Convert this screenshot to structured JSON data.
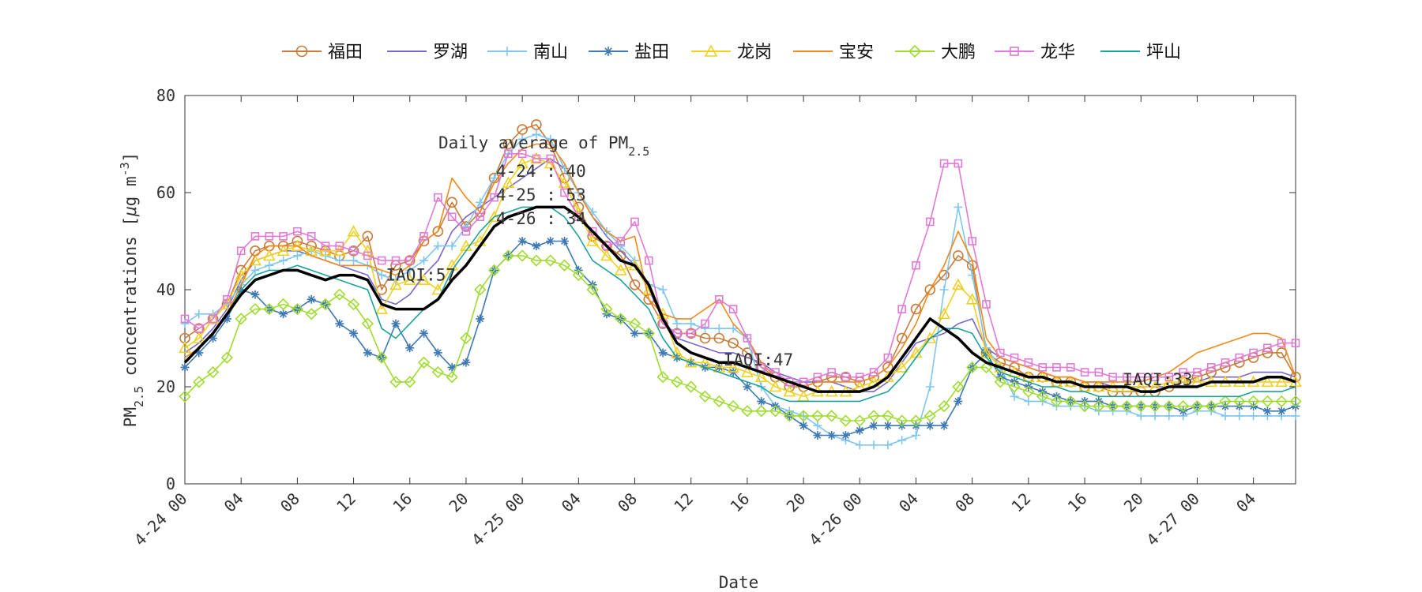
{
  "chart_data": {
    "type": "line",
    "xlabel": "Date",
    "ylabel_main": "PM",
    "ylabel_sub": "2.5",
    "ylabel_rest": " concentrations [",
    "ylabel_mu": "μ",
    "ylabel_unit": "g m",
    "ylabel_sup": "-3",
    "ylabel_close": "]",
    "ylim": [
      0,
      80
    ],
    "yticks": [
      0,
      20,
      40,
      60,
      80
    ],
    "xlim": [
      0,
      79
    ],
    "xticks": [
      {
        "x": 0,
        "label": "4-24 00"
      },
      {
        "x": 4,
        "label": "04"
      },
      {
        "x": 8,
        "label": "08"
      },
      {
        "x": 12,
        "label": "12"
      },
      {
        "x": 16,
        "label": "16"
      },
      {
        "x": 20,
        "label": "20"
      },
      {
        "x": 24,
        "label": "4-25 00"
      },
      {
        "x": 28,
        "label": "04"
      },
      {
        "x": 32,
        "label": "08"
      },
      {
        "x": 36,
        "label": "12"
      },
      {
        "x": 40,
        "label": "16"
      },
      {
        "x": 44,
        "label": "20"
      },
      {
        "x": 48,
        "label": "4-26 00"
      },
      {
        "x": 52,
        "label": "04"
      },
      {
        "x": 56,
        "label": "08"
      },
      {
        "x": 60,
        "label": "12"
      },
      {
        "x": 64,
        "label": "16"
      },
      {
        "x": 68,
        "label": "20"
      },
      {
        "x": 72,
        "label": "4-27 00"
      },
      {
        "x": 76,
        "label": "04"
      }
    ],
    "grid": false,
    "legend_position": "top",
    "annotations": {
      "title_main": "Daily average of PM",
      "title_sub": "2.5",
      "lines": [
        "4-24 : 40",
        "4-25 : 53",
        "4-26 : 34"
      ],
      "iaqi": [
        {
          "label": "IAQI:57",
          "x": 14.3,
          "y": 43
        },
        {
          "label": "IAQI:47",
          "x": 38.3,
          "y": 25.5
        },
        {
          "label": "IAQI:33",
          "x": 66.7,
          "y": 21.5
        }
      ]
    },
    "average_series": {
      "color": "#000000",
      "values": [
        25,
        28,
        31,
        35,
        39,
        42,
        43,
        44,
        44,
        43,
        42,
        43,
        43,
        42,
        37,
        36,
        36,
        36,
        38,
        42,
        45,
        49,
        53,
        55,
        56,
        57,
        57,
        57,
        55,
        52,
        49,
        46,
        45,
        41,
        34,
        29,
        27,
        26,
        25,
        25,
        24,
        23,
        22,
        21,
        20,
        19,
        19,
        19,
        19,
        20,
        22,
        26,
        30,
        34,
        32,
        30,
        27,
        25,
        24,
        23,
        22,
        22,
        21,
        21,
        20,
        20,
        20,
        20,
        19,
        19,
        20,
        20,
        20,
        21,
        21,
        21,
        21,
        22,
        22,
        21
      ]
    },
    "series": [
      {
        "name": "福田",
        "color": "#c97b3a",
        "marker": "circle",
        "marker_every": 1,
        "values": [
          30,
          32,
          34,
          37,
          44,
          48,
          49,
          49,
          50,
          49,
          48,
          47,
          48,
          51,
          40,
          45,
          46,
          50,
          52,
          58,
          53,
          56,
          63,
          70,
          73,
          74,
          70,
          63,
          57,
          51,
          49,
          47,
          41,
          38,
          33,
          31,
          31,
          30,
          30,
          29,
          27,
          24,
          22,
          20,
          20,
          21,
          22,
          22,
          21,
          22,
          24,
          30,
          36,
          40,
          43,
          47,
          45,
          27,
          25,
          24,
          22,
          22,
          21,
          21,
          20,
          20,
          19,
          19,
          19,
          19,
          20,
          21,
          22,
          23,
          24,
          25,
          26,
          27,
          27,
          22
        ]
      },
      {
        "name": "罗湖",
        "color": "#7a66cc",
        "marker": "none",
        "values": [
          27,
          29,
          32,
          36,
          42,
          46,
          47,
          48,
          48,
          47,
          46,
          45,
          44,
          43,
          38,
          37,
          39,
          43,
          46,
          52,
          55,
          57,
          59,
          61,
          63,
          65,
          67,
          65,
          60,
          55,
          51,
          48,
          45,
          40,
          34,
          30,
          29,
          28,
          27,
          27,
          26,
          25,
          23,
          22,
          21,
          21,
          21,
          20,
          19,
          19,
          21,
          25,
          29,
          30,
          31,
          33,
          34,
          28,
          26,
          25,
          24,
          23,
          22,
          22,
          21,
          21,
          20,
          20,
          20,
          20,
          20,
          21,
          21,
          22,
          22,
          22,
          23,
          23,
          23,
          22
        ]
      },
      {
        "name": "南山",
        "color": "#7fc6f2",
        "marker": "plus",
        "marker_every": 1,
        "values": [
          33,
          35,
          35,
          37,
          41,
          44,
          45,
          46,
          47,
          48,
          47,
          46,
          46,
          45,
          43,
          42,
          44,
          46,
          49,
          49,
          53,
          58,
          63,
          68,
          71,
          72,
          71,
          65,
          60,
          56,
          52,
          49,
          46,
          41,
          40,
          33,
          33,
          32,
          32,
          32,
          30,
          20,
          16,
          15,
          14,
          12,
          10,
          9,
          8,
          8,
          8,
          9,
          10,
          20,
          40,
          57,
          43,
          28,
          24,
          18,
          17,
          17,
          16,
          16,
          16,
          15,
          15,
          15,
          14,
          14,
          14,
          14,
          15,
          15,
          14,
          14,
          14,
          14,
          14,
          14
        ]
      },
      {
        "name": "盐田",
        "color": "#3f7ab5",
        "marker": "asterisk",
        "marker_every": 1,
        "values": [
          24,
          27,
          30,
          34,
          40,
          39,
          36,
          35,
          36,
          38,
          37,
          33,
          31,
          27,
          26,
          33,
          28,
          31,
          27,
          24,
          25,
          34,
          44,
          47,
          50,
          49,
          50,
          50,
          44,
          41,
          35,
          34,
          31,
          31,
          27,
          26,
          25,
          24,
          24,
          23,
          20,
          17,
          16,
          14,
          12,
          10,
          10,
          10,
          11,
          12,
          12,
          12,
          12,
          12,
          12,
          17,
          24,
          27,
          22,
          21,
          20,
          19,
          18,
          17,
          17,
          17,
          16,
          16,
          16,
          16,
          16,
          15,
          16,
          16,
          16,
          16,
          16,
          15,
          15,
          16
        ]
      },
      {
        "name": "龙岗",
        "color": "#f0d020",
        "marker": "triangle",
        "marker_every": 1,
        "values": [
          28,
          30,
          34,
          37,
          43,
          46,
          47,
          48,
          49,
          48,
          48,
          48,
          52,
          48,
          36,
          41,
          42,
          42,
          40,
          45,
          49,
          50,
          55,
          62,
          66,
          67,
          66,
          62,
          56,
          50,
          47,
          44,
          45,
          40,
          35,
          27,
          25,
          25,
          24,
          24,
          23,
          22,
          20,
          19,
          18,
          19,
          19,
          19,
          20,
          21,
          22,
          24,
          27,
          30,
          35,
          41,
          38,
          27,
          24,
          23,
          22,
          22,
          21,
          21,
          20,
          20,
          20,
          20,
          20,
          20,
          21,
          21,
          21,
          21,
          21,
          21,
          21,
          21,
          21,
          21
        ]
      },
      {
        "name": "宝安",
        "color": "#f08a1c",
        "marker": "none",
        "values": [
          26,
          28,
          31,
          35,
          41,
          47,
          49,
          49,
          49,
          47,
          46,
          45,
          45,
          45,
          44,
          43,
          45,
          50,
          52,
          63,
          59,
          56,
          62,
          66,
          69,
          70,
          70,
          66,
          60,
          55,
          52,
          50,
          51,
          38,
          35,
          34,
          34,
          36,
          38,
          33,
          30,
          25,
          22,
          21,
          20,
          21,
          21,
          21,
          21,
          22,
          24,
          28,
          33,
          40,
          45,
          52,
          46,
          30,
          26,
          25,
          24,
          23,
          22,
          22,
          21,
          21,
          21,
          21,
          21,
          22,
          23,
          25,
          27,
          28,
          29,
          30,
          31,
          31,
          30,
          22
        ]
      },
      {
        "name": "大鹏",
        "color": "#9fdc30",
        "marker": "diamond",
        "marker_every": 1,
        "values": [
          18,
          21,
          23,
          26,
          34,
          36,
          36,
          37,
          36,
          35,
          37,
          39,
          37,
          33,
          26,
          21,
          21,
          25,
          23,
          22,
          30,
          40,
          44,
          47,
          47,
          46,
          46,
          45,
          43,
          40,
          36,
          34,
          33,
          31,
          22,
          21,
          20,
          18,
          17,
          16,
          15,
          15,
          15,
          14,
          14,
          14,
          14,
          13,
          13,
          14,
          14,
          13,
          13,
          14,
          16,
          20,
          24,
          24,
          21,
          20,
          19,
          18,
          17,
          17,
          16,
          16,
          16,
          16,
          16,
          16,
          16,
          16,
          16,
          16,
          17,
          17,
          17,
          17,
          17,
          17
        ]
      },
      {
        "name": "龙华",
        "color": "#e07ad6",
        "marker": "square",
        "marker_every": 1,
        "values": [
          34,
          32,
          34,
          38,
          48,
          51,
          51,
          51,
          52,
          51,
          49,
          49,
          48,
          47,
          46,
          46,
          46,
          51,
          59,
          55,
          52,
          55,
          59,
          68,
          68,
          67,
          67,
          60,
          55,
          52,
          49,
          50,
          54,
          46,
          33,
          31,
          31,
          33,
          38,
          36,
          30,
          24,
          23,
          21,
          21,
          22,
          23,
          22,
          22,
          23,
          26,
          36,
          45,
          54,
          66,
          66,
          50,
          37,
          27,
          26,
          25,
          24,
          24,
          24,
          23,
          23,
          22,
          22,
          22,
          22,
          22,
          23,
          23,
          24,
          25,
          26,
          27,
          28,
          29,
          29
        ]
      },
      {
        "name": "坪山",
        "color": "#1aa39a",
        "marker": "none",
        "values": [
          25,
          28,
          31,
          35,
          40,
          43,
          44,
          44,
          45,
          44,
          43,
          42,
          41,
          40,
          32,
          30,
          33,
          36,
          38,
          44,
          48,
          52,
          55,
          56,
          57,
          57,
          57,
          55,
          51,
          46,
          44,
          42,
          39,
          36,
          30,
          26,
          25,
          24,
          23,
          22,
          21,
          20,
          18,
          17,
          17,
          17,
          17,
          17,
          17,
          18,
          19,
          22,
          26,
          30,
          32,
          32,
          31,
          26,
          23,
          22,
          21,
          20,
          20,
          19,
          19,
          18,
          18,
          18,
          18,
          18,
          18,
          18,
          18,
          18,
          18,
          18,
          19,
          19,
          19,
          20
        ]
      }
    ]
  }
}
